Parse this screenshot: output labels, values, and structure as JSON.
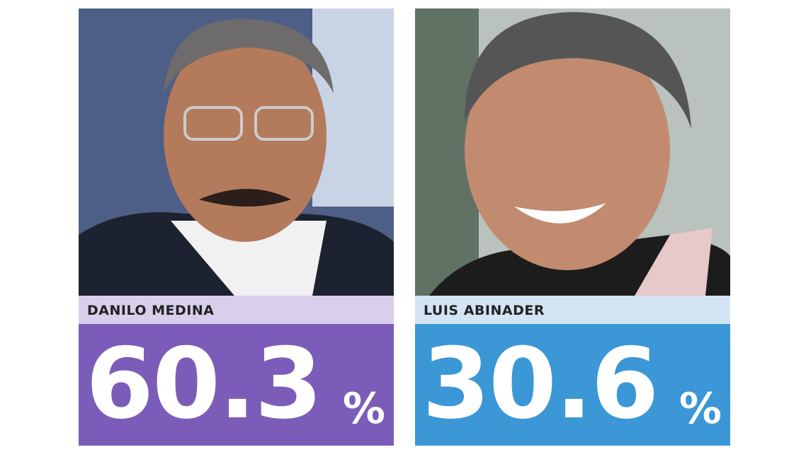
{
  "candidates": [
    {
      "name": "DANILO MEDINA",
      "value": 60.3,
      "unit": "%",
      "color": "#7c5cb9",
      "band_color": "#d9cfeb"
    },
    {
      "name": "LUIS ABINADER",
      "value": 30.6,
      "unit": "%",
      "color": "#3b97d6",
      "band_color": "#d3e5f4"
    }
  ]
}
